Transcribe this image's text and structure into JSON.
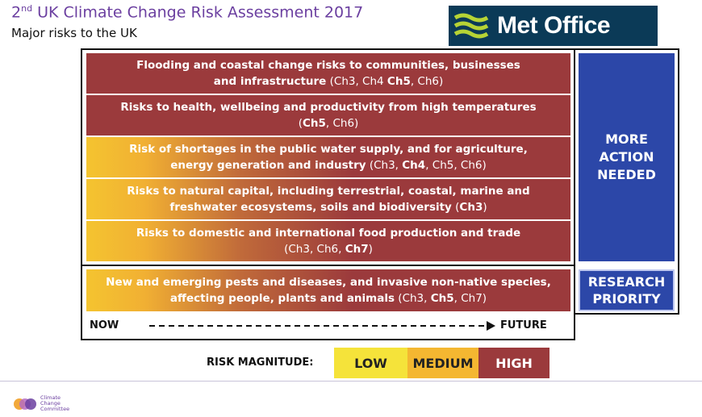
{
  "header": {
    "title_num": "2",
    "title_sup": "nd",
    "title_rest": " UK Climate Change Risk Assessment 2017",
    "subtitle": "Major risks to the UK"
  },
  "logo": {
    "text": "Met Office"
  },
  "risks": [
    {
      "line1": "Flooding and coastal change risks to communities, businesses",
      "line2_bold": "and infrastructure",
      "ch_pre": " (Ch3, Ch4 ",
      "ch_bold": "Ch5",
      "ch_post": ", Ch6)",
      "magnitude": "high"
    },
    {
      "line1": "Risks to health, wellbeing and productivity from high temperatures",
      "line2_bold": "",
      "ch_pre": "(",
      "ch_bold": "Ch5",
      "ch_post": ", Ch6)",
      "magnitude": "medium-high"
    },
    {
      "line1": "Risk of shortages in the public water supply, and for agriculture,",
      "line2_bold": "energy generation and industry",
      "ch_pre": " (Ch3, ",
      "ch_bold": "Ch4",
      "ch_post": ", Ch5, Ch6)",
      "magnitude": "low-high"
    },
    {
      "line1": "Risks to natural capital, including terrestrial, coastal, marine and",
      "line2_bold": "freshwater ecosystems, soils and biodiversity",
      "ch_pre": " (",
      "ch_bold": "Ch3",
      "ch_post": ")",
      "magnitude": "low-high"
    },
    {
      "line1": "Risks to domestic and international food production and trade",
      "line2_bold": "",
      "ch_pre": "(Ch3, Ch6, ",
      "ch_bold": "Ch7",
      "ch_post": ")",
      "magnitude": "low-high"
    },
    {
      "line1": "New and emerging  pests and diseases, and invasive non-native species,",
      "line2_bold": "affecting people, plants and animals",
      "ch_pre": " (Ch3, ",
      "ch_bold": "Ch5",
      "ch_post": ", Ch7)",
      "magnitude": "low-high"
    }
  ],
  "side": {
    "more_action": [
      "MORE",
      "ACTION",
      "NEEDED"
    ],
    "research": [
      "RESEARCH",
      "PRIORITY"
    ]
  },
  "timeline": {
    "now": "NOW",
    "future": "FUTURE"
  },
  "legend": {
    "label": "RISK MAGNITUDE:",
    "low": "LOW",
    "medium": "MEDIUM",
    "high": "HIGH",
    "colors": {
      "low": "#f5e33a",
      "medium": "#f4b731",
      "high": "#9b3a3c"
    }
  },
  "footer": {
    "org": [
      "Climate",
      "Change",
      "Committee"
    ]
  }
}
